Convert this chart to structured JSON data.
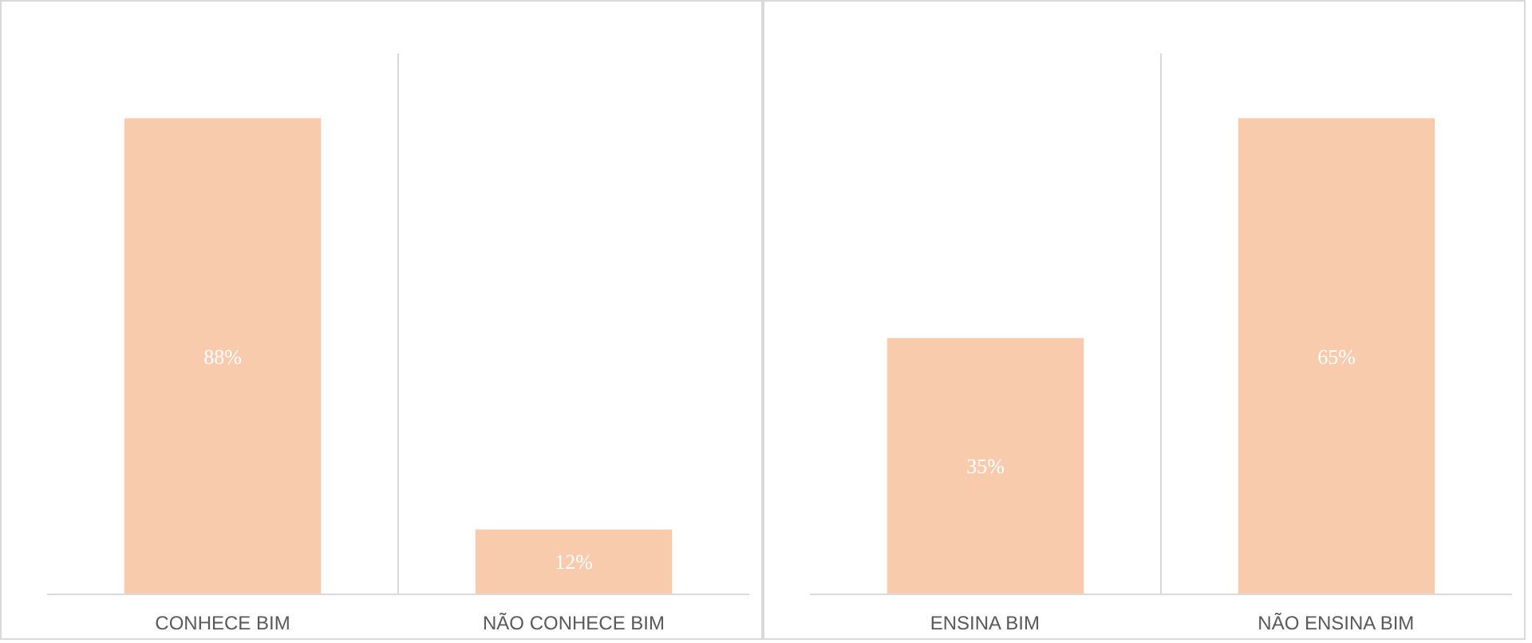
{
  "chart_data": [
    {
      "type": "bar",
      "categories": [
        "CONHECE BIM",
        "NÃO CONHECE BIM"
      ],
      "values": [
        88,
        12
      ],
      "value_labels": [
        "88%",
        "12%"
      ],
      "color": "#f8cbad",
      "grid": "x"
    },
    {
      "type": "bar",
      "categories": [
        "ENSINA BIM",
        "NÃO ENSINA BIM"
      ],
      "values": [
        35,
        65
      ],
      "value_labels": [
        "35%",
        "65%"
      ],
      "color": "#f8cbad",
      "grid": "x"
    }
  ]
}
